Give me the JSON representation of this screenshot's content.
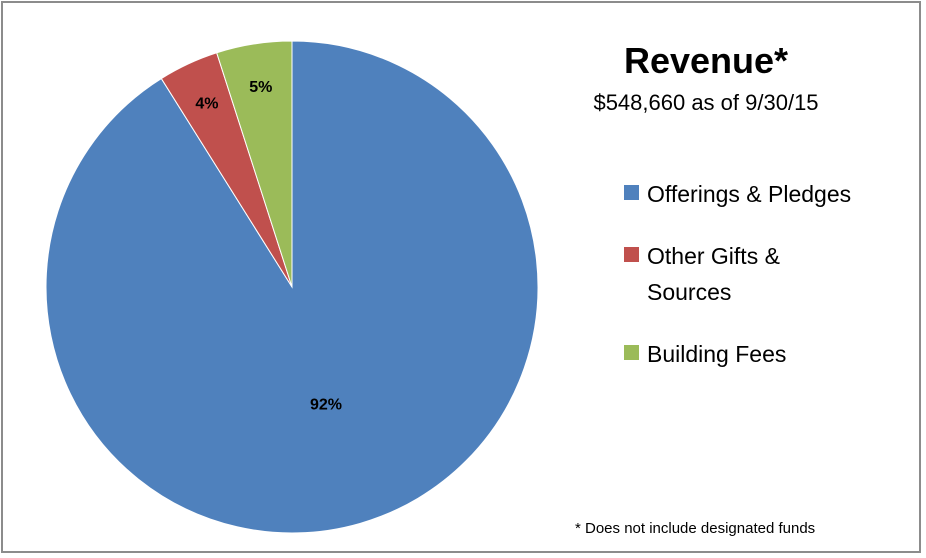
{
  "chart_data": {
    "type": "pie",
    "title": "Revenue*",
    "subtitle": "$548,660 as of 9/30/15",
    "categories": [
      "Offerings & Pledges",
      "Other Gifts & Sources",
      "Building Fees"
    ],
    "values": [
      92,
      4,
      5
    ],
    "value_labels": [
      "92%",
      "4%",
      "5%"
    ],
    "colors": [
      "#4f81bd",
      "#c0504d",
      "#9bbb59"
    ],
    "annotation": "* Does not include designated funds",
    "legend": "right"
  }
}
